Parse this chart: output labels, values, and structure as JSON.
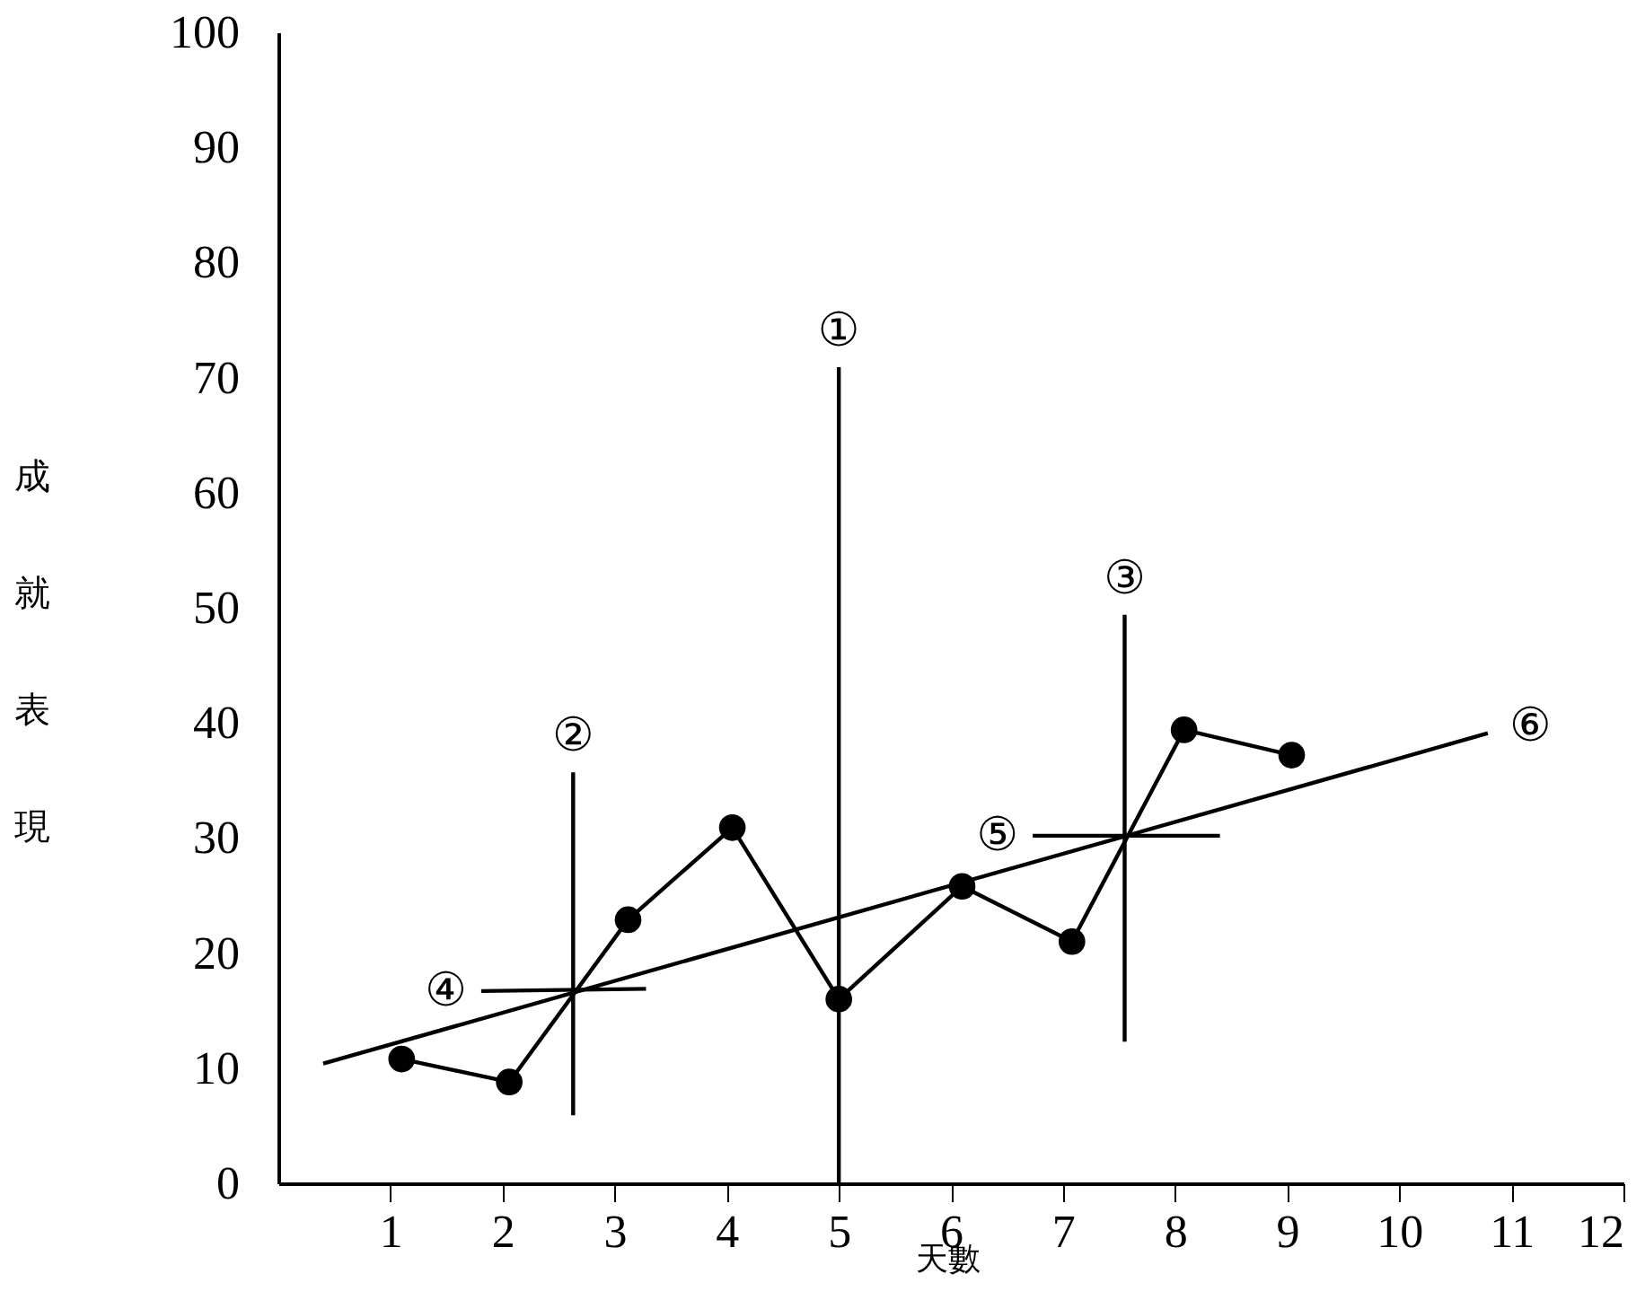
{
  "chart_data": {
    "type": "line",
    "xlabel": "天數",
    "ylabel": "成就表現",
    "xlim": [
      0,
      12
    ],
    "xticks": [
      1,
      2,
      3,
      4,
      5,
      6,
      7,
      8,
      9,
      10,
      11,
      12
    ],
    "ylim": [
      0,
      100
    ],
    "yticks": [
      0,
      10,
      20,
      30,
      40,
      50,
      60,
      70,
      80,
      90,
      100
    ],
    "grid": false,
    "line_style": "solid",
    "series": [
      {
        "marker": "circle",
        "color": "#000000",
        "x": [
          1.1,
          2.06,
          3.12,
          4.05,
          5,
          6.1,
          7.08,
          8.08,
          9.04
        ],
        "values": [
          10.8,
          8.8,
          22.9,
          30.9,
          16,
          25.8,
          21,
          39.4,
          37.2
        ]
      },
      {
        "name": "⑥",
        "marker": "none",
        "color": "#000000",
        "x": [
          0.4,
          10.79
        ],
        "values": [
          10.4,
          39.1
        ]
      },
      {
        "name": "①",
        "marker": "none",
        "color": "#000000",
        "x": [
          5,
          5
        ],
        "values": [
          0,
          70.9
        ]
      },
      {
        "name": "②",
        "marker": "none",
        "color": "#000000",
        "x": [
          2.63,
          2.63
        ],
        "values": [
          5.9,
          35.7
        ]
      },
      {
        "name": "③",
        "marker": "none",
        "color": "#000000",
        "x": [
          7.55,
          7.55
        ],
        "values": [
          12.3,
          49.4
        ]
      },
      {
        "name": "④",
        "marker": "none",
        "color": "#000000",
        "x": [
          1.81,
          3.28
        ],
        "values": [
          16.7,
          16.9
        ]
      },
      {
        "name": "⑤",
        "marker": "none",
        "color": "#000000",
        "x": [
          6.73,
          8.4
        ],
        "values": [
          30.2,
          30.2
        ]
      }
    ]
  }
}
